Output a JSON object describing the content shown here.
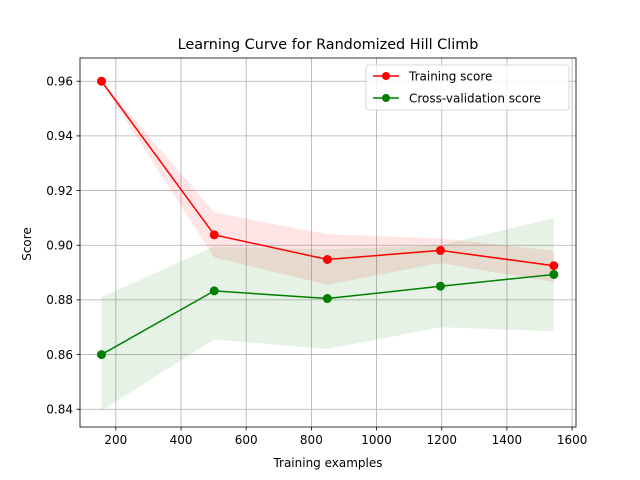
{
  "chart_data": {
    "type": "line",
    "title": "Learning Curve for Randomized Hill Climb",
    "xlabel": "Training examples",
    "ylabel": "Score",
    "xlim": [
      90,
      1612
    ],
    "ylim": [
      0.8335,
      0.9685
    ],
    "xticks": [
      200,
      400,
      600,
      800,
      1000,
      1200,
      1400,
      1600
    ],
    "xtick_labels": [
      "200",
      "400",
      "600",
      "800",
      "1000",
      "1200",
      "1400",
      "1600"
    ],
    "yticks": [
      0.84,
      0.86,
      0.88,
      0.9,
      0.92,
      0.94,
      0.96
    ],
    "ytick_labels": [
      "0.84",
      "0.86",
      "0.88",
      "0.90",
      "0.92",
      "0.94",
      "0.96"
    ],
    "grid": true,
    "legend_position": "top-right",
    "x": [
      156,
      502,
      849,
      1196,
      1544
    ],
    "series": [
      {
        "name": "Training score",
        "color": "#ff0000",
        "fill_color": "#ff0000",
        "values": [
          0.96,
          0.9038,
          0.8948,
          0.8981,
          0.8925
        ],
        "band_upper": [
          0.96,
          0.912,
          0.904,
          0.9025,
          0.898
        ],
        "band_lower": [
          0.9595,
          0.8955,
          0.8855,
          0.8935,
          0.8865
        ]
      },
      {
        "name": "Cross-validation score",
        "color": "#008000",
        "fill_color": "#008000",
        "values": [
          0.86,
          0.8833,
          0.8805,
          0.885,
          0.8893
        ],
        "band_upper": [
          0.881,
          0.8995,
          0.8985,
          0.9,
          0.91
        ],
        "band_lower": [
          0.8395,
          0.8655,
          0.862,
          0.87,
          0.8685
        ]
      }
    ]
  }
}
